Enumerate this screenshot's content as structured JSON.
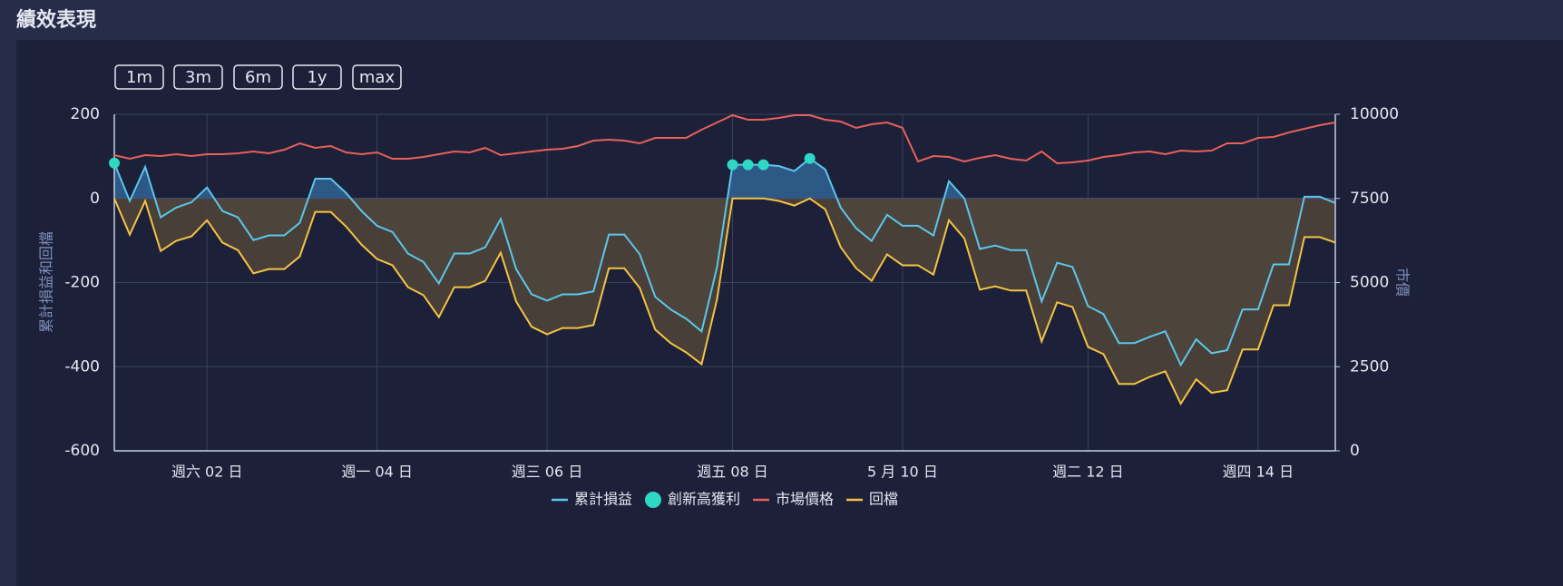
{
  "header": {
    "title": "績效表現"
  },
  "buttons": [
    "1m",
    "3m",
    "6m",
    "1y",
    "max"
  ],
  "chart_data": {
    "type": "line",
    "ylabel": "累計損益和回檔",
    "y2label": "市價",
    "categories": [
      null,
      null,
      null,
      null,
      null,
      null,
      "週六 02 日",
      null,
      null,
      null,
      null,
      null,
      null,
      null,
      null,
      null,
      null,
      "週一 04 日",
      null,
      null,
      null,
      null,
      null,
      null,
      null,
      null,
      null,
      null,
      "週三 06 日",
      null,
      null,
      null,
      null,
      null,
      null,
      null,
      null,
      null,
      null,
      null,
      "週五 08 日",
      null,
      null,
      null,
      null,
      null,
      null,
      null,
      null,
      null,
      null,
      "5 月 10 日",
      null,
      null,
      null,
      null,
      null,
      null,
      null,
      null,
      null,
      null,
      null,
      "週二 12 日",
      null,
      null,
      null,
      null,
      null,
      null,
      null,
      null,
      null,
      null,
      "週四 14 日",
      null,
      null,
      null,
      null,
      null
    ],
    "series": [
      {
        "name": "累計損益",
        "color": "#5cc6ec",
        "fill_above": "#2f5f8f",
        "fill_below": "#55635a",
        "values": [
          84,
          -6,
          75,
          -45,
          -22,
          -9,
          26,
          -30,
          -45,
          -99,
          -88,
          -88,
          -58,
          47,
          47,
          13,
          -30,
          -65,
          -80,
          -131,
          -151,
          -202,
          -131,
          -131,
          -116,
          -49,
          -168,
          -228,
          -243,
          -228,
          -228,
          -221,
          -86,
          -86,
          -133,
          -234,
          -264,
          -286,
          -316,
          -163,
          80,
          80,
          80,
          77,
          65,
          95,
          69,
          -22,
          -71,
          -101,
          -39,
          -65,
          -65,
          -88,
          41,
          0,
          -120,
          -112,
          -123,
          -123,
          -245,
          -153,
          -163,
          -256,
          -275,
          -344,
          -344,
          -329,
          -316,
          -396,
          -335,
          -368,
          -361,
          -264,
          -264,
          -157,
          -157,
          4,
          4,
          -11
        ]
      },
      {
        "name": "創新高獲利",
        "color": "#2ed8c3",
        "type": "scatter",
        "values": [
          84,
          null,
          null,
          null,
          null,
          null,
          null,
          null,
          null,
          null,
          null,
          null,
          null,
          null,
          null,
          null,
          null,
          null,
          null,
          null,
          null,
          null,
          null,
          null,
          null,
          null,
          null,
          null,
          null,
          null,
          null,
          null,
          null,
          null,
          null,
          null,
          null,
          null,
          null,
          null,
          80,
          80,
          80,
          null,
          null,
          95,
          null,
          null,
          null,
          null,
          null,
          null,
          null,
          null,
          null,
          null,
          null,
          null,
          null,
          null,
          null,
          null,
          null,
          null,
          null,
          null,
          null,
          null,
          null,
          null,
          null,
          null,
          null,
          null,
          null,
          null,
          null,
          null,
          null,
          null
        ]
      },
      {
        "name": "市場價格",
        "color": "#e8605a",
        "axis": "y2",
        "values": [
          8787,
          8679,
          8787,
          8760,
          8814,
          8760,
          8814,
          8814,
          8841,
          8895,
          8841,
          8949,
          9137,
          9003,
          9057,
          8868,
          8814,
          8868,
          8679,
          8679,
          8733,
          8814,
          8895,
          8868,
          9003,
          8787,
          8841,
          8895,
          8949,
          8976,
          9057,
          9218,
          9245,
          9218,
          9137,
          9299,
          9299,
          9299,
          9542,
          9757,
          9973,
          9838,
          9838,
          9892,
          9973,
          9973,
          9838,
          9784,
          9596,
          9704,
          9757,
          9596,
          8598,
          8760,
          8733,
          8598,
          8706,
          8787,
          8679,
          8625,
          8895,
          8544,
          8571,
          8625,
          8733,
          8787,
          8868,
          8895,
          8814,
          8922,
          8895,
          8922,
          9137,
          9137,
          9299,
          9326,
          9461,
          9569,
          9677,
          9757
        ]
      },
      {
        "name": "回檔",
        "color": "#f5c342",
        "fill_below": "#4c4339",
        "values": [
          0,
          -86,
          -6,
          -125,
          -101,
          -90,
          -52,
          -105,
          -123,
          -178,
          -168,
          -168,
          -138,
          -32,
          -32,
          -67,
          -110,
          -144,
          -159,
          -211,
          -230,
          -282,
          -211,
          -211,
          -196,
          -129,
          -245,
          -305,
          -323,
          -308,
          -308,
          -301,
          -166,
          -166,
          -213,
          -312,
          -344,
          -366,
          -394,
          -239,
          0,
          0,
          0,
          -6,
          -17,
          0,
          -26,
          -116,
          -166,
          -196,
          -133,
          -159,
          -159,
          -181,
          -52,
          -95,
          -217,
          -209,
          -219,
          -219,
          -340,
          -247,
          -258,
          -353,
          -370,
          -441,
          -441,
          -424,
          -411,
          -488,
          -430,
          -462,
          -456,
          -359,
          -359,
          -254,
          -254,
          -92,
          -92,
          -105
        ]
      }
    ],
    "ylim": [
      -600,
      200
    ],
    "yticks": [
      -600,
      -400,
      -200,
      0,
      200
    ],
    "y2lim": [
      0,
      10000
    ],
    "y2ticks": [
      0,
      2500,
      5000,
      7500,
      10000
    ],
    "grid": true,
    "legend": "bottom"
  }
}
